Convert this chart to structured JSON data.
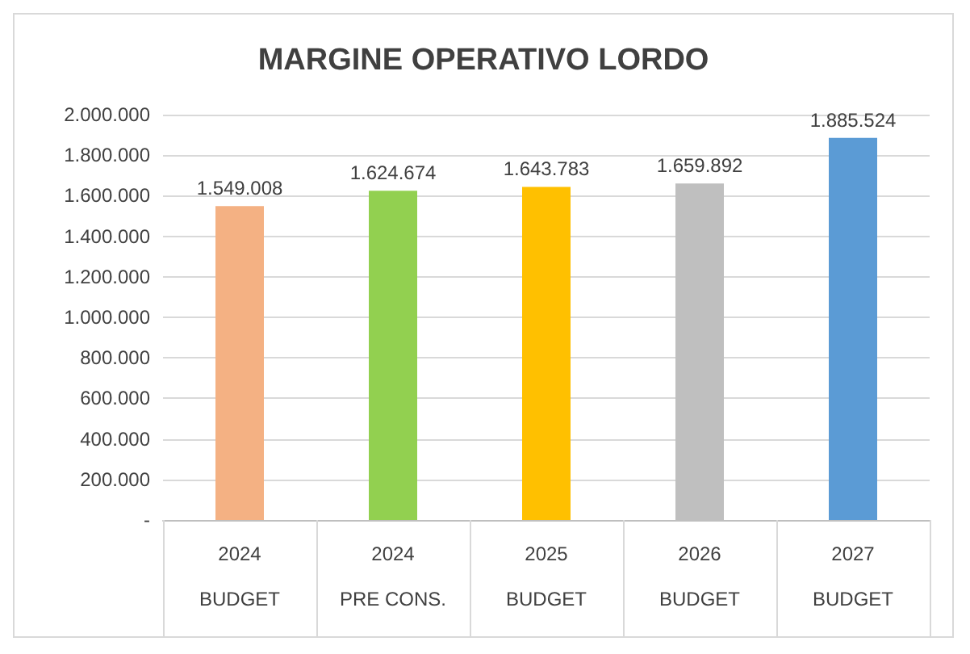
{
  "chart_data": {
    "type": "bar",
    "title": "MARGINE OPERATIVO LORDO",
    "categories": [
      "2024\n\nBUDGET",
      "2024\n\nPRE CONS.",
      "2025\n\nBUDGET",
      "2026\n\nBUDGET",
      "2027\n\nBUDGET"
    ],
    "values": [
      1549008,
      1624674,
      1643783,
      1659892,
      1885524
    ],
    "colors": [
      "#f4b183",
      "#92d050",
      "#ffc000",
      "#bfbfbf",
      "#5b9bd5"
    ],
    "value_labels": [
      "1.549.008",
      "1.624.674",
      "1.643.783",
      "1.659.892",
      "1.885.524"
    ],
    "ylim": [
      0,
      2000000
    ],
    "yticks": [
      {
        "value": 0,
        "label": "-"
      },
      {
        "value": 200000,
        "label": "200.000"
      },
      {
        "value": 400000,
        "label": "400.000"
      },
      {
        "value": 600000,
        "label": "600.000"
      },
      {
        "value": 800000,
        "label": "800.000"
      },
      {
        "value": 1000000,
        "label": "1.000.000"
      },
      {
        "value": 1200000,
        "label": "1.200.000"
      },
      {
        "value": 1400000,
        "label": "1.400.000"
      },
      {
        "value": 1600000,
        "label": "1.600.000"
      },
      {
        "value": 1800000,
        "label": "1.800.000"
      },
      {
        "value": 2000000,
        "label": "2.000.000"
      }
    ],
    "grid": "y"
  }
}
